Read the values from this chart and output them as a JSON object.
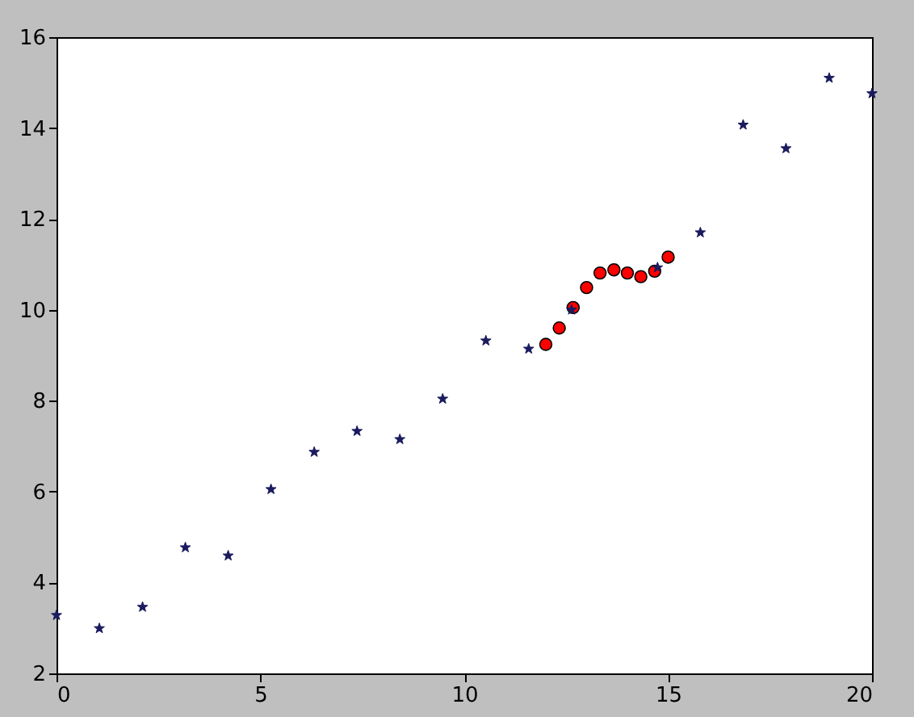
{
  "chart_data": {
    "type": "scatter",
    "xlim": [
      0,
      20
    ],
    "ylim": [
      2,
      16
    ],
    "xticks": [
      0,
      5,
      10,
      15,
      20
    ],
    "yticks": [
      2,
      4,
      6,
      8,
      10,
      12,
      14,
      16
    ],
    "grid": false,
    "series": [
      {
        "color": "#ff0000",
        "marker": "circle",
        "x": [
          12,
          12.33,
          12.67,
          13,
          13.33,
          13.67,
          14,
          14.33,
          14.67,
          15
        ],
        "values": [
          9.24,
          9.6,
          10.05,
          10.49,
          10.81,
          10.88,
          10.81,
          10.73,
          10.85,
          11.16
        ]
      },
      {
        "color": "#1a1a5e",
        "marker": "star",
        "x": [
          0,
          1.05,
          2.11,
          3.16,
          4.21,
          5.26,
          6.32,
          7.37,
          8.42,
          9.47,
          10.53,
          11.58,
          12.63,
          13.68,
          14.74,
          15.79,
          16.84,
          17.89,
          18.95,
          20
        ],
        "values": [
          3.28,
          2.99,
          3.46,
          4.77,
          4.59,
          6.05,
          6.87,
          7.33,
          7.15,
          8.04,
          9.32,
          9.14,
          10.0,
          null,
          10.93,
          11.7,
          14.07,
          13.55,
          15.1,
          14.76
        ]
      }
    ]
  }
}
